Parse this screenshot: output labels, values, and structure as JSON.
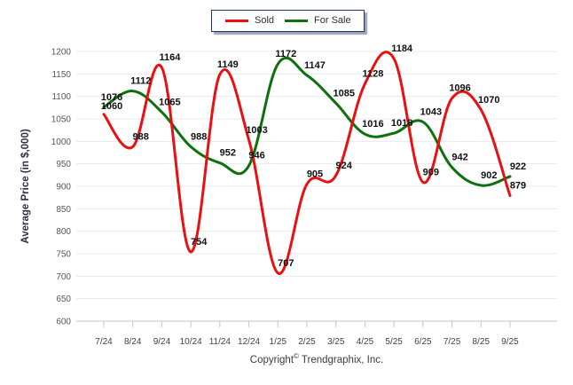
{
  "chart_data": {
    "type": "line",
    "x": [
      "7/24",
      "8/24",
      "9/24",
      "10/24",
      "11/24",
      "12/24",
      "1/25",
      "2/25",
      "3/25",
      "4/25",
      "5/25",
      "6/25",
      "7/25",
      "8/25",
      "9/25"
    ],
    "series": [
      {
        "name": "Sold",
        "color": "#e81010",
        "values": [
          1060,
          988,
          1164,
          754,
          1149,
          1003,
          707,
          905,
          924,
          1128,
          1184,
          909,
          1096,
          1070,
          879
        ]
      },
      {
        "name": "For Sale",
        "color": "#0c700c",
        "values": [
          1076,
          1112,
          1065,
          988,
          952,
          946,
          1172,
          1147,
          1085,
          1016,
          1018,
          1043,
          942,
          902,
          922
        ]
      }
    ],
    "ylabel": "Average Price (in $,000)",
    "ylim": [
      600,
      1200
    ],
    "yticks": [
      600,
      650,
      700,
      750,
      800,
      850,
      900,
      950,
      1000,
      1050,
      1100,
      1150,
      1200
    ],
    "grid": "horizontal",
    "legend_position": "top-center",
    "point_labels_visible": true
  },
  "footer": {
    "copyright_word": "Copyright",
    "copyright_symbol": "©",
    "company": "Trendgraphix, Inc."
  },
  "colors": {
    "sold_line": "#e81010",
    "for_sale_line": "#0c700c",
    "gridline": "#e9e9e9",
    "baseline": "#c6c6c6",
    "y_tick_label": "#55565e",
    "x_tick_label": "#3e4154",
    "axis_title": "#2f3040",
    "data_label": "#101014",
    "legend_border": "#24365f"
  }
}
